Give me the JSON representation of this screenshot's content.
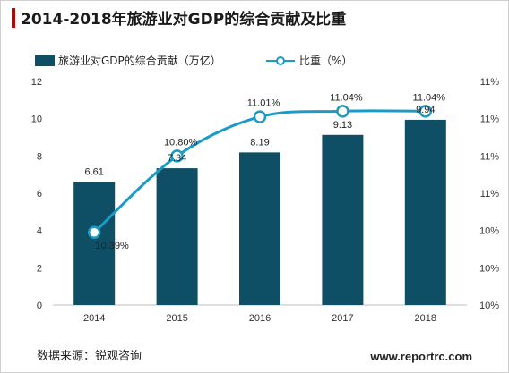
{
  "title": "2014-2018年旅游业对GDP的综合贡献及比重",
  "source": "数据来源：锐观咨询",
  "site": "www.reportrc.com",
  "colors": {
    "bar": "#0e4f66",
    "line": "#1c9bc6",
    "title_accent": "#c00000"
  },
  "chart_data": {
    "type": "bar+line",
    "categories": [
      "2014",
      "2015",
      "2016",
      "2017",
      "2018"
    ],
    "series": [
      {
        "name": "旅游业对GDP的综合贡献（万亿）",
        "type": "bar",
        "axis": "left",
        "values": [
          6.61,
          7.34,
          8.19,
          9.13,
          9.94
        ],
        "labels": [
          "6.61",
          "7.34",
          "8.19",
          "9.13",
          "9.94"
        ]
      },
      {
        "name": "比重（%）",
        "type": "line",
        "axis": "right",
        "values": [
          10.39,
          10.8,
          11.01,
          11.04,
          11.04
        ],
        "labels": [
          "10.39%",
          "10.80%",
          "11.01%",
          "11.04%",
          "11.04%"
        ]
      }
    ],
    "y_left": {
      "min": 0,
      "max": 12,
      "ticks": [
        "0",
        "2",
        "4",
        "6",
        "8",
        "10",
        "12"
      ]
    },
    "y_right": {
      "min": 10.0,
      "max": 11.2,
      "ticks": [
        "10%",
        "10%",
        "10%",
        "11%",
        "11%",
        "11%",
        "11%"
      ]
    },
    "legend_position": "top-left",
    "grid": false
  }
}
